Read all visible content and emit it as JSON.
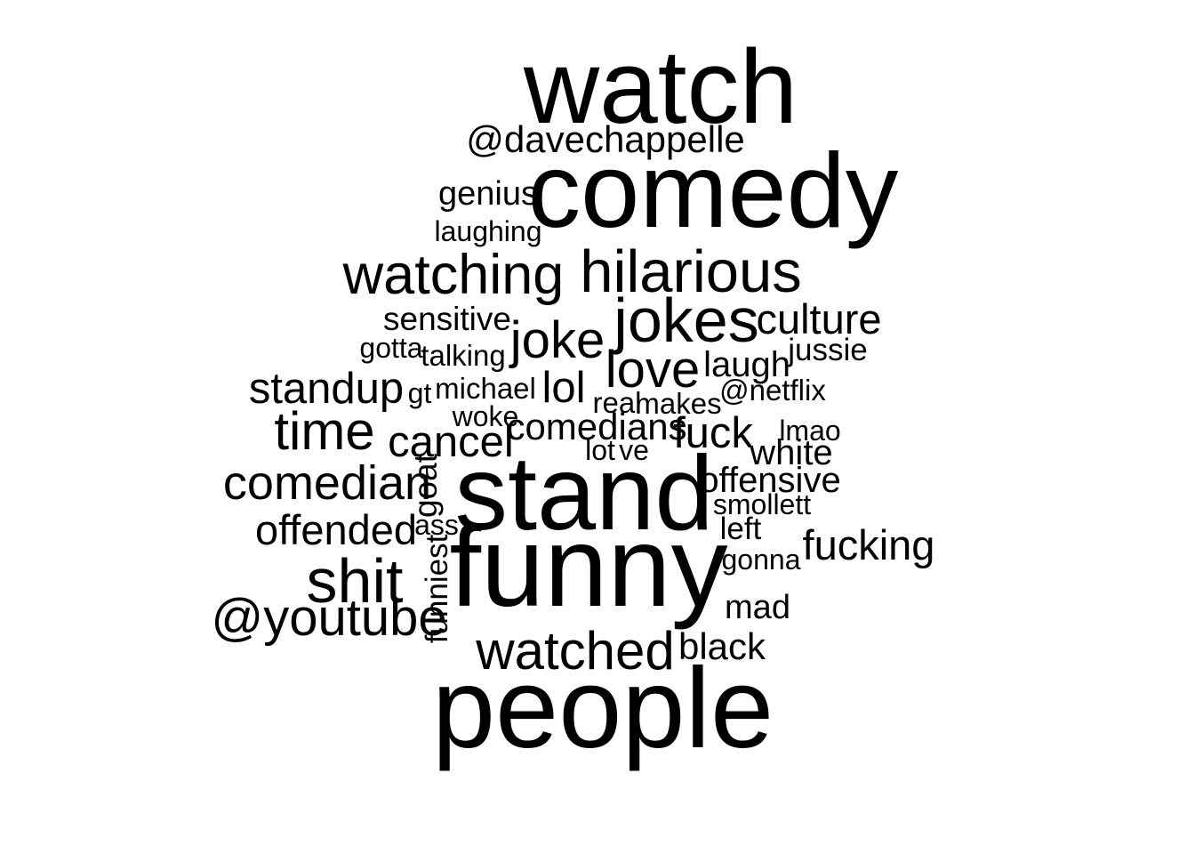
{
  "chart_data": {
    "type": "wordcloud",
    "title": "",
    "words": [
      {
        "text": "people",
        "weight": 100
      },
      {
        "text": "funny",
        "weight": 100
      },
      {
        "text": "stand",
        "weight": 93
      },
      {
        "text": "comedy",
        "weight": 93
      },
      {
        "text": "watch",
        "weight": 92
      },
      {
        "text": "shit",
        "weight": 55
      },
      {
        "text": "jokes",
        "weight": 55
      },
      {
        "text": "hilarious",
        "weight": 52
      },
      {
        "text": "watching",
        "weight": 49
      },
      {
        "text": "watched",
        "weight": 47
      },
      {
        "text": "time",
        "weight": 47
      },
      {
        "text": "@youtube",
        "weight": 45
      },
      {
        "text": "joke",
        "weight": 45
      },
      {
        "text": "love",
        "weight": 45
      },
      {
        "text": "comedian",
        "weight": 42
      },
      {
        "text": "cancel",
        "weight": 38
      },
      {
        "text": "lol",
        "weight": 38
      },
      {
        "text": "fuck",
        "weight": 38
      },
      {
        "text": "standup",
        "weight": 38
      },
      {
        "text": "offended",
        "weight": 37
      },
      {
        "text": "culture",
        "weight": 37
      },
      {
        "text": "fucking",
        "weight": 37
      },
      {
        "text": "black",
        "weight": 33
      },
      {
        "text": "@davechappelle",
        "weight": 33
      },
      {
        "text": "comedians",
        "weight": 33
      },
      {
        "text": "white",
        "weight": 31
      },
      {
        "text": "offensive",
        "weight": 31
      },
      {
        "text": "laugh",
        "weight": 31
      },
      {
        "text": "mad",
        "weight": 30
      },
      {
        "text": "genius",
        "weight": 30
      },
      {
        "text": "sensitive",
        "weight": 29
      },
      {
        "text": "goat",
        "weight": 29
      },
      {
        "text": "funniest",
        "weight": 27
      },
      {
        "text": "jussie",
        "weight": 27
      },
      {
        "text": "left",
        "weight": 27
      },
      {
        "text": "@netflix",
        "weight": 26
      },
      {
        "text": "makes",
        "weight": 26
      },
      {
        "text": "real",
        "weight": 26
      },
      {
        "text": "michael",
        "weight": 26
      },
      {
        "text": "talking",
        "weight": 26
      },
      {
        "text": "smollett",
        "weight": 25
      },
      {
        "text": "gonna",
        "weight": 25
      },
      {
        "text": "woke",
        "weight": 25
      },
      {
        "text": "gt",
        "weight": 25
      },
      {
        "text": "lmao",
        "weight": 25
      },
      {
        "text": "gotta",
        "weight": 25
      },
      {
        "text": "lot",
        "weight": 25
      },
      {
        "text": "ve",
        "weight": 25
      },
      {
        "text": "ass",
        "weight": 25
      },
      {
        "text": "laughing",
        "weight": 25
      }
    ]
  }
}
